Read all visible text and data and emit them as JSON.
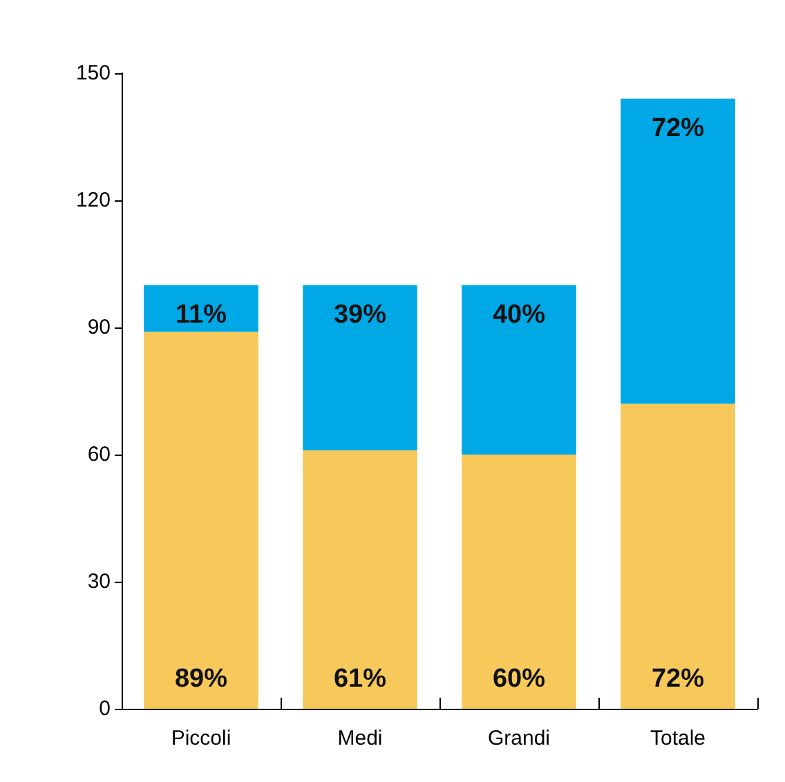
{
  "chart_data": {
    "type": "bar",
    "stacked": true,
    "categories": [
      "Piccoli",
      "Medi",
      "Grandi",
      "Totale"
    ],
    "series": [
      {
        "color": "#f7c95a",
        "values": [
          89,
          61,
          60,
          72
        ],
        "value_labels": [
          "89%",
          "61%",
          "60%",
          "72%"
        ]
      },
      {
        "color": "#00a8e6",
        "values": [
          11,
          39,
          40,
          72
        ],
        "value_labels": [
          "11%",
          "39%",
          "40%",
          "72%"
        ]
      }
    ],
    "ylim": [
      0,
      150
    ],
    "yticks": [
      0,
      30,
      60,
      90,
      120,
      150
    ]
  }
}
